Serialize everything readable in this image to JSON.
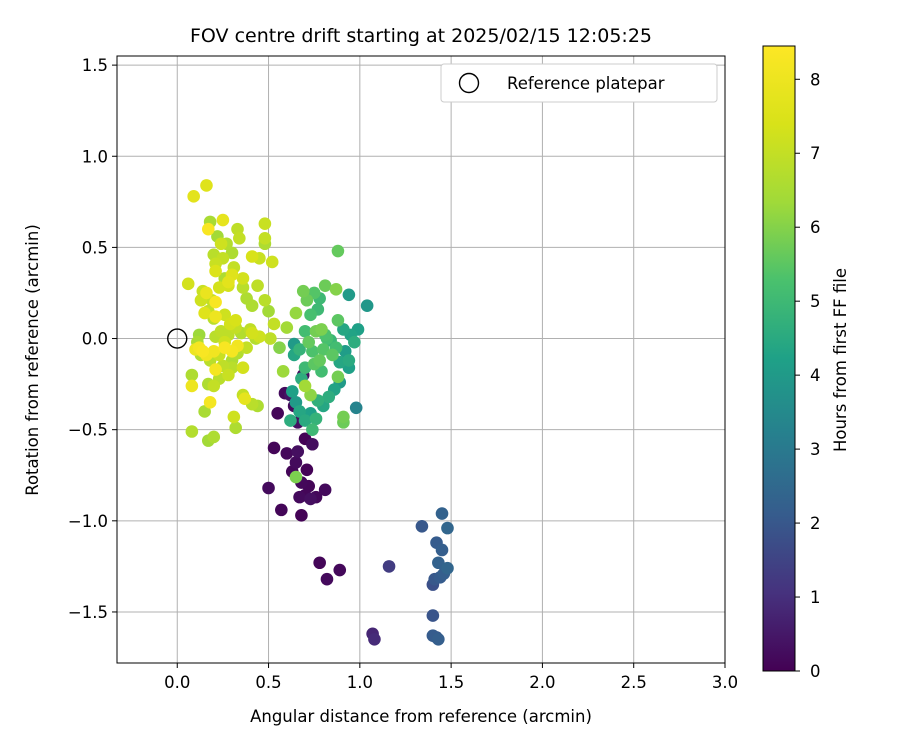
{
  "chart_data": {
    "type": "scatter",
    "title": "FOV centre drift starting at 2025/02/15 12:05:25",
    "xlabel": "Angular distance from reference (arcmin)",
    "ylabel": "Rotation from reference (arcmin)",
    "xlim": [
      -0.33,
      3.0
    ],
    "ylim": [
      -1.78,
      1.55
    ],
    "x_ticks": [
      0.0,
      0.5,
      1.0,
      1.5,
      2.0,
      2.5,
      3.0
    ],
    "x_tick_labels": [
      "0.0",
      "0.5",
      "1.0",
      "1.5",
      "2.0",
      "2.5",
      "3.0"
    ],
    "y_ticks": [
      -1.5,
      -1.0,
      -0.5,
      0.0,
      0.5,
      1.0,
      1.5
    ],
    "y_tick_labels": [
      "−1.5",
      "−1.0",
      "−0.5",
      "0.0",
      "0.5",
      "1.0",
      "1.5"
    ],
    "grid": true,
    "legend": {
      "position": "top-right",
      "entries": [
        "Reference platepar"
      ]
    },
    "reference_point": {
      "x": 0.0,
      "y": 0.0
    },
    "colorbar": {
      "label": "Hours from first FF file",
      "colormap": "viridis",
      "range": [
        0,
        8.45
      ],
      "ticks": [
        0,
        1,
        2,
        3,
        4,
        5,
        6,
        7,
        8
      ],
      "tick_labels": [
        "0",
        "1",
        "2",
        "3",
        "4",
        "5",
        "6",
        "7",
        "8"
      ]
    },
    "points": [
      [
        0.55,
        -0.41,
        0.1
      ],
      [
        0.59,
        -0.3,
        0.2
      ],
      [
        0.64,
        -0.37,
        0.15
      ],
      [
        0.66,
        -0.46,
        0.3
      ],
      [
        0.7,
        -0.55,
        0.05
      ],
      [
        0.74,
        -0.58,
        0.25
      ],
      [
        0.53,
        -0.6,
        0.1
      ],
      [
        0.66,
        -0.62,
        0.3
      ],
      [
        0.6,
        -0.63,
        0.15
      ],
      [
        0.65,
        -0.68,
        0.2
      ],
      [
        0.63,
        -0.73,
        0.1
      ],
      [
        0.71,
        -0.72,
        0.05
      ],
      [
        0.68,
        -0.79,
        0.15
      ],
      [
        0.5,
        -0.82,
        0.2
      ],
      [
        0.72,
        -0.81,
        0.1
      ],
      [
        0.67,
        -0.87,
        0.2
      ],
      [
        0.7,
        -0.86,
        0.1
      ],
      [
        0.73,
        -0.88,
        0.3
      ],
      [
        0.76,
        -0.87,
        0.15
      ],
      [
        0.81,
        -0.83,
        0.2
      ],
      [
        0.57,
        -0.94,
        0.1
      ],
      [
        0.68,
        -0.97,
        0.05
      ],
      [
        0.78,
        -1.23,
        0.1
      ],
      [
        0.82,
        -1.32,
        0.2
      ],
      [
        0.89,
        -1.27,
        0.15
      ],
      [
        0.62,
        -0.31,
        0.4
      ],
      [
        0.69,
        -0.2,
        0.3
      ],
      [
        1.07,
        -1.62,
        0.8
      ],
      [
        1.08,
        -1.65,
        0.9
      ],
      [
        1.16,
        -1.25,
        1.3
      ],
      [
        1.34,
        -1.03,
        2.0
      ],
      [
        1.4,
        -1.35,
        1.8
      ],
      [
        1.41,
        -1.32,
        2.0
      ],
      [
        1.4,
        -1.52,
        1.9
      ],
      [
        1.4,
        -1.63,
        2.1
      ],
      [
        1.42,
        -1.64,
        2.0
      ],
      [
        1.43,
        -1.65,
        2.2
      ],
      [
        1.42,
        -1.12,
        2.1
      ],
      [
        1.45,
        -1.16,
        2.2
      ],
      [
        1.43,
        -1.23,
        2.3
      ],
      [
        1.46,
        -1.29,
        2.2
      ],
      [
        1.48,
        -1.26,
        2.4
      ],
      [
        1.44,
        -1.31,
        2.1
      ],
      [
        1.45,
        -0.96,
        2.3
      ],
      [
        1.48,
        -1.04,
        2.4
      ],
      [
        0.98,
        -0.38,
        3.3
      ],
      [
        0.94,
        0.24,
        4.0
      ],
      [
        1.04,
        0.18,
        3.9
      ],
      [
        0.99,
        0.05,
        4.2
      ],
      [
        0.91,
        0.05,
        4.4
      ],
      [
        0.95,
        0.02,
        4.3
      ],
      [
        0.92,
        -0.07,
        4.1
      ],
      [
        0.97,
        -0.02,
        4.6
      ],
      [
        0.94,
        -0.12,
        4.5
      ],
      [
        0.89,
        -0.13,
        4.4
      ],
      [
        0.94,
        -0.16,
        4.2
      ],
      [
        0.89,
        -0.24,
        4.0
      ],
      [
        0.86,
        -0.28,
        4.3
      ],
      [
        0.83,
        -0.32,
        4.6
      ],
      [
        0.8,
        -0.37,
        4.4
      ],
      [
        0.77,
        -0.34,
        4.7
      ],
      [
        0.73,
        -0.41,
        4.2
      ],
      [
        0.76,
        -0.44,
        4.8
      ],
      [
        0.7,
        -0.45,
        4.5
      ],
      [
        0.74,
        -0.5,
        5.0
      ],
      [
        0.64,
        -0.03,
        4.0
      ],
      [
        0.64,
        -0.09,
        4.4
      ],
      [
        0.67,
        -0.06,
        4.8
      ],
      [
        0.68,
        -0.22,
        4.6
      ],
      [
        0.7,
        -0.16,
        5.0
      ],
      [
        0.63,
        -0.29,
        4.2
      ],
      [
        0.65,
        -0.35,
        4.0
      ],
      [
        0.67,
        -0.4,
        4.4
      ],
      [
        0.62,
        -0.45,
        4.6
      ],
      [
        0.84,
        -0.01,
        4.9
      ],
      [
        0.87,
        -0.05,
        5.1
      ],
      [
        0.81,
        0.02,
        5.3
      ],
      [
        0.88,
        0.1,
        5.5
      ],
      [
        0.73,
        0.13,
        5.2
      ],
      [
        0.77,
        0.16,
        5.0
      ],
      [
        0.8,
        -0.06,
        5.4
      ],
      [
        0.78,
        -0.12,
        5.6
      ],
      [
        0.75,
        -0.14,
        5.5
      ],
      [
        0.71,
        0.21,
        5.7
      ],
      [
        0.75,
        0.25,
        5.4
      ],
      [
        0.69,
        0.26,
        5.8
      ],
      [
        0.78,
        0.22,
        5.0
      ],
      [
        0.81,
        0.29,
        5.7
      ],
      [
        0.76,
        0.04,
        5.8
      ],
      [
        0.79,
        0.05,
        5.9
      ],
      [
        0.72,
        -0.02,
        5.6
      ],
      [
        0.74,
        -0.07,
        5.3
      ],
      [
        0.85,
        -0.09,
        5.5
      ],
      [
        0.88,
        -0.21,
        5.8
      ],
      [
        0.91,
        -0.43,
        5.8
      ],
      [
        0.91,
        -0.46,
        5.7
      ],
      [
        0.87,
        0.27,
        6.0
      ],
      [
        0.88,
        0.48,
        5.6
      ],
      [
        0.82,
        0.0,
        5.2
      ],
      [
        0.79,
        -0.18,
        5.1
      ],
      [
        0.65,
        0.14,
        6.2
      ],
      [
        0.6,
        0.06,
        6.4
      ],
      [
        0.58,
        -0.18,
        6.3
      ],
      [
        0.56,
        -0.05,
        6.0
      ],
      [
        0.65,
        -0.76,
        5.9
      ],
      [
        0.7,
        -0.26,
        6.4
      ],
      [
        0.73,
        -0.31,
        6.1
      ],
      [
        0.7,
        0.04,
        5.1
      ],
      [
        0.18,
        0.64,
        6.5
      ],
      [
        0.22,
        0.56,
        6.4
      ],
      [
        0.2,
        0.46,
        6.8
      ],
      [
        0.21,
        0.41,
        7.1
      ],
      [
        0.25,
        0.44,
        7.0
      ],
      [
        0.3,
        0.47,
        6.6
      ],
      [
        0.34,
        0.55,
        7.0
      ],
      [
        0.33,
        0.6,
        6.9
      ],
      [
        0.24,
        0.52,
        7.2
      ],
      [
        0.27,
        0.52,
        6.7
      ],
      [
        0.26,
        0.33,
        6.6
      ],
      [
        0.31,
        0.39,
        7.0
      ],
      [
        0.28,
        0.29,
        7.3
      ],
      [
        0.19,
        0.21,
        7.0
      ],
      [
        0.23,
        0.28,
        7.3
      ],
      [
        0.14,
        0.26,
        7.1
      ],
      [
        0.13,
        0.21,
        7.2
      ],
      [
        0.17,
        0.15,
        7.0
      ],
      [
        0.2,
        0.11,
        6.8
      ],
      [
        0.26,
        0.13,
        7.2
      ],
      [
        0.29,
        0.08,
        7.3
      ],
      [
        0.32,
        0.06,
        7.0
      ],
      [
        0.24,
        0.04,
        6.9
      ],
      [
        0.21,
        0.01,
        6.8
      ],
      [
        0.28,
        0.02,
        6.9
      ],
      [
        0.35,
        0.03,
        6.7
      ],
      [
        0.4,
        0.05,
        6.9
      ],
      [
        0.38,
        0.22,
        6.6
      ],
      [
        0.36,
        0.28,
        6.8
      ],
      [
        0.44,
        0.29,
        6.9
      ],
      [
        0.45,
        0.44,
        7.1
      ],
      [
        0.48,
        0.55,
        7.0
      ],
      [
        0.48,
        0.63,
        7.1
      ],
      [
        0.48,
        0.52,
        6.6
      ],
      [
        0.52,
        0.42,
        7.2
      ],
      [
        0.41,
        0.18,
        6.6
      ],
      [
        0.48,
        0.21,
        6.8
      ],
      [
        0.5,
        0.15,
        6.4
      ],
      [
        0.53,
        0.08,
        7.0
      ],
      [
        0.51,
        0.0,
        6.9
      ],
      [
        0.43,
        0.0,
        6.7
      ],
      [
        0.38,
        -0.05,
        7.0
      ],
      [
        0.33,
        -0.08,
        6.7
      ],
      [
        0.3,
        -0.12,
        6.6
      ],
      [
        0.25,
        -0.15,
        6.9
      ],
      [
        0.28,
        -0.2,
        7.1
      ],
      [
        0.23,
        -0.22,
        6.8
      ],
      [
        0.2,
        -0.26,
        7.0
      ],
      [
        0.17,
        -0.25,
        6.6
      ],
      [
        0.18,
        -0.12,
        6.8
      ],
      [
        0.13,
        -0.09,
        6.7
      ],
      [
        0.11,
        -0.02,
        6.5
      ],
      [
        0.12,
        0.02,
        6.3
      ],
      [
        0.08,
        -0.2,
        6.6
      ],
      [
        0.15,
        -0.4,
        6.5
      ],
      [
        0.17,
        -0.56,
        6.4
      ],
      [
        0.2,
        -0.54,
        6.6
      ],
      [
        0.08,
        -0.51,
        6.7
      ],
      [
        0.32,
        -0.49,
        6.6
      ],
      [
        0.31,
        -0.43,
        7.2
      ],
      [
        0.36,
        -0.31,
        7.0
      ],
      [
        0.41,
        -0.36,
        6.8
      ],
      [
        0.44,
        -0.37,
        6.6
      ],
      [
        0.37,
        -0.33,
        7.8
      ],
      [
        0.36,
        -0.16,
        7.3
      ],
      [
        0.3,
        -0.16,
        6.8
      ],
      [
        0.23,
        -0.09,
        7.1
      ],
      [
        0.26,
        -0.02,
        7.2
      ],
      [
        0.32,
        0.1,
        7.4
      ],
      [
        0.41,
        0.03,
        7.3
      ],
      [
        0.45,
        0.01,
        7.2
      ],
      [
        0.06,
        0.3,
        7.3
      ],
      [
        0.09,
        0.78,
        7.7
      ],
      [
        0.16,
        0.84,
        7.6
      ],
      [
        0.25,
        0.65,
        7.8
      ],
      [
        0.3,
        0.35,
        7.6
      ],
      [
        0.36,
        0.33,
        7.3
      ],
      [
        0.41,
        0.45,
        7.4
      ],
      [
        0.21,
        0.37,
        7.5
      ],
      [
        0.15,
        0.14,
        7.6
      ],
      [
        0.08,
        -0.26,
        8.0
      ],
      [
        0.12,
        -0.05,
        8.2
      ],
      [
        0.14,
        -0.07,
        8.3
      ],
      [
        0.16,
        -0.09,
        8.1
      ],
      [
        0.17,
        0.6,
        8.3
      ],
      [
        0.21,
        0.2,
        8.3
      ],
      [
        0.18,
        -0.35,
        8.2
      ],
      [
        0.21,
        -0.17,
        8.2
      ],
      [
        0.21,
        0.12,
        8.0
      ],
      [
        0.2,
        -0.07,
        8.1
      ],
      [
        0.26,
        -0.05,
        8.3
      ],
      [
        0.3,
        -0.07,
        8.2
      ],
      [
        0.33,
        -0.04,
        8.1
      ],
      [
        0.16,
        0.25,
        7.9
      ],
      [
        0.28,
        0.31,
        7.7
      ],
      [
        0.1,
        -0.06,
        8.0
      ]
    ]
  }
}
